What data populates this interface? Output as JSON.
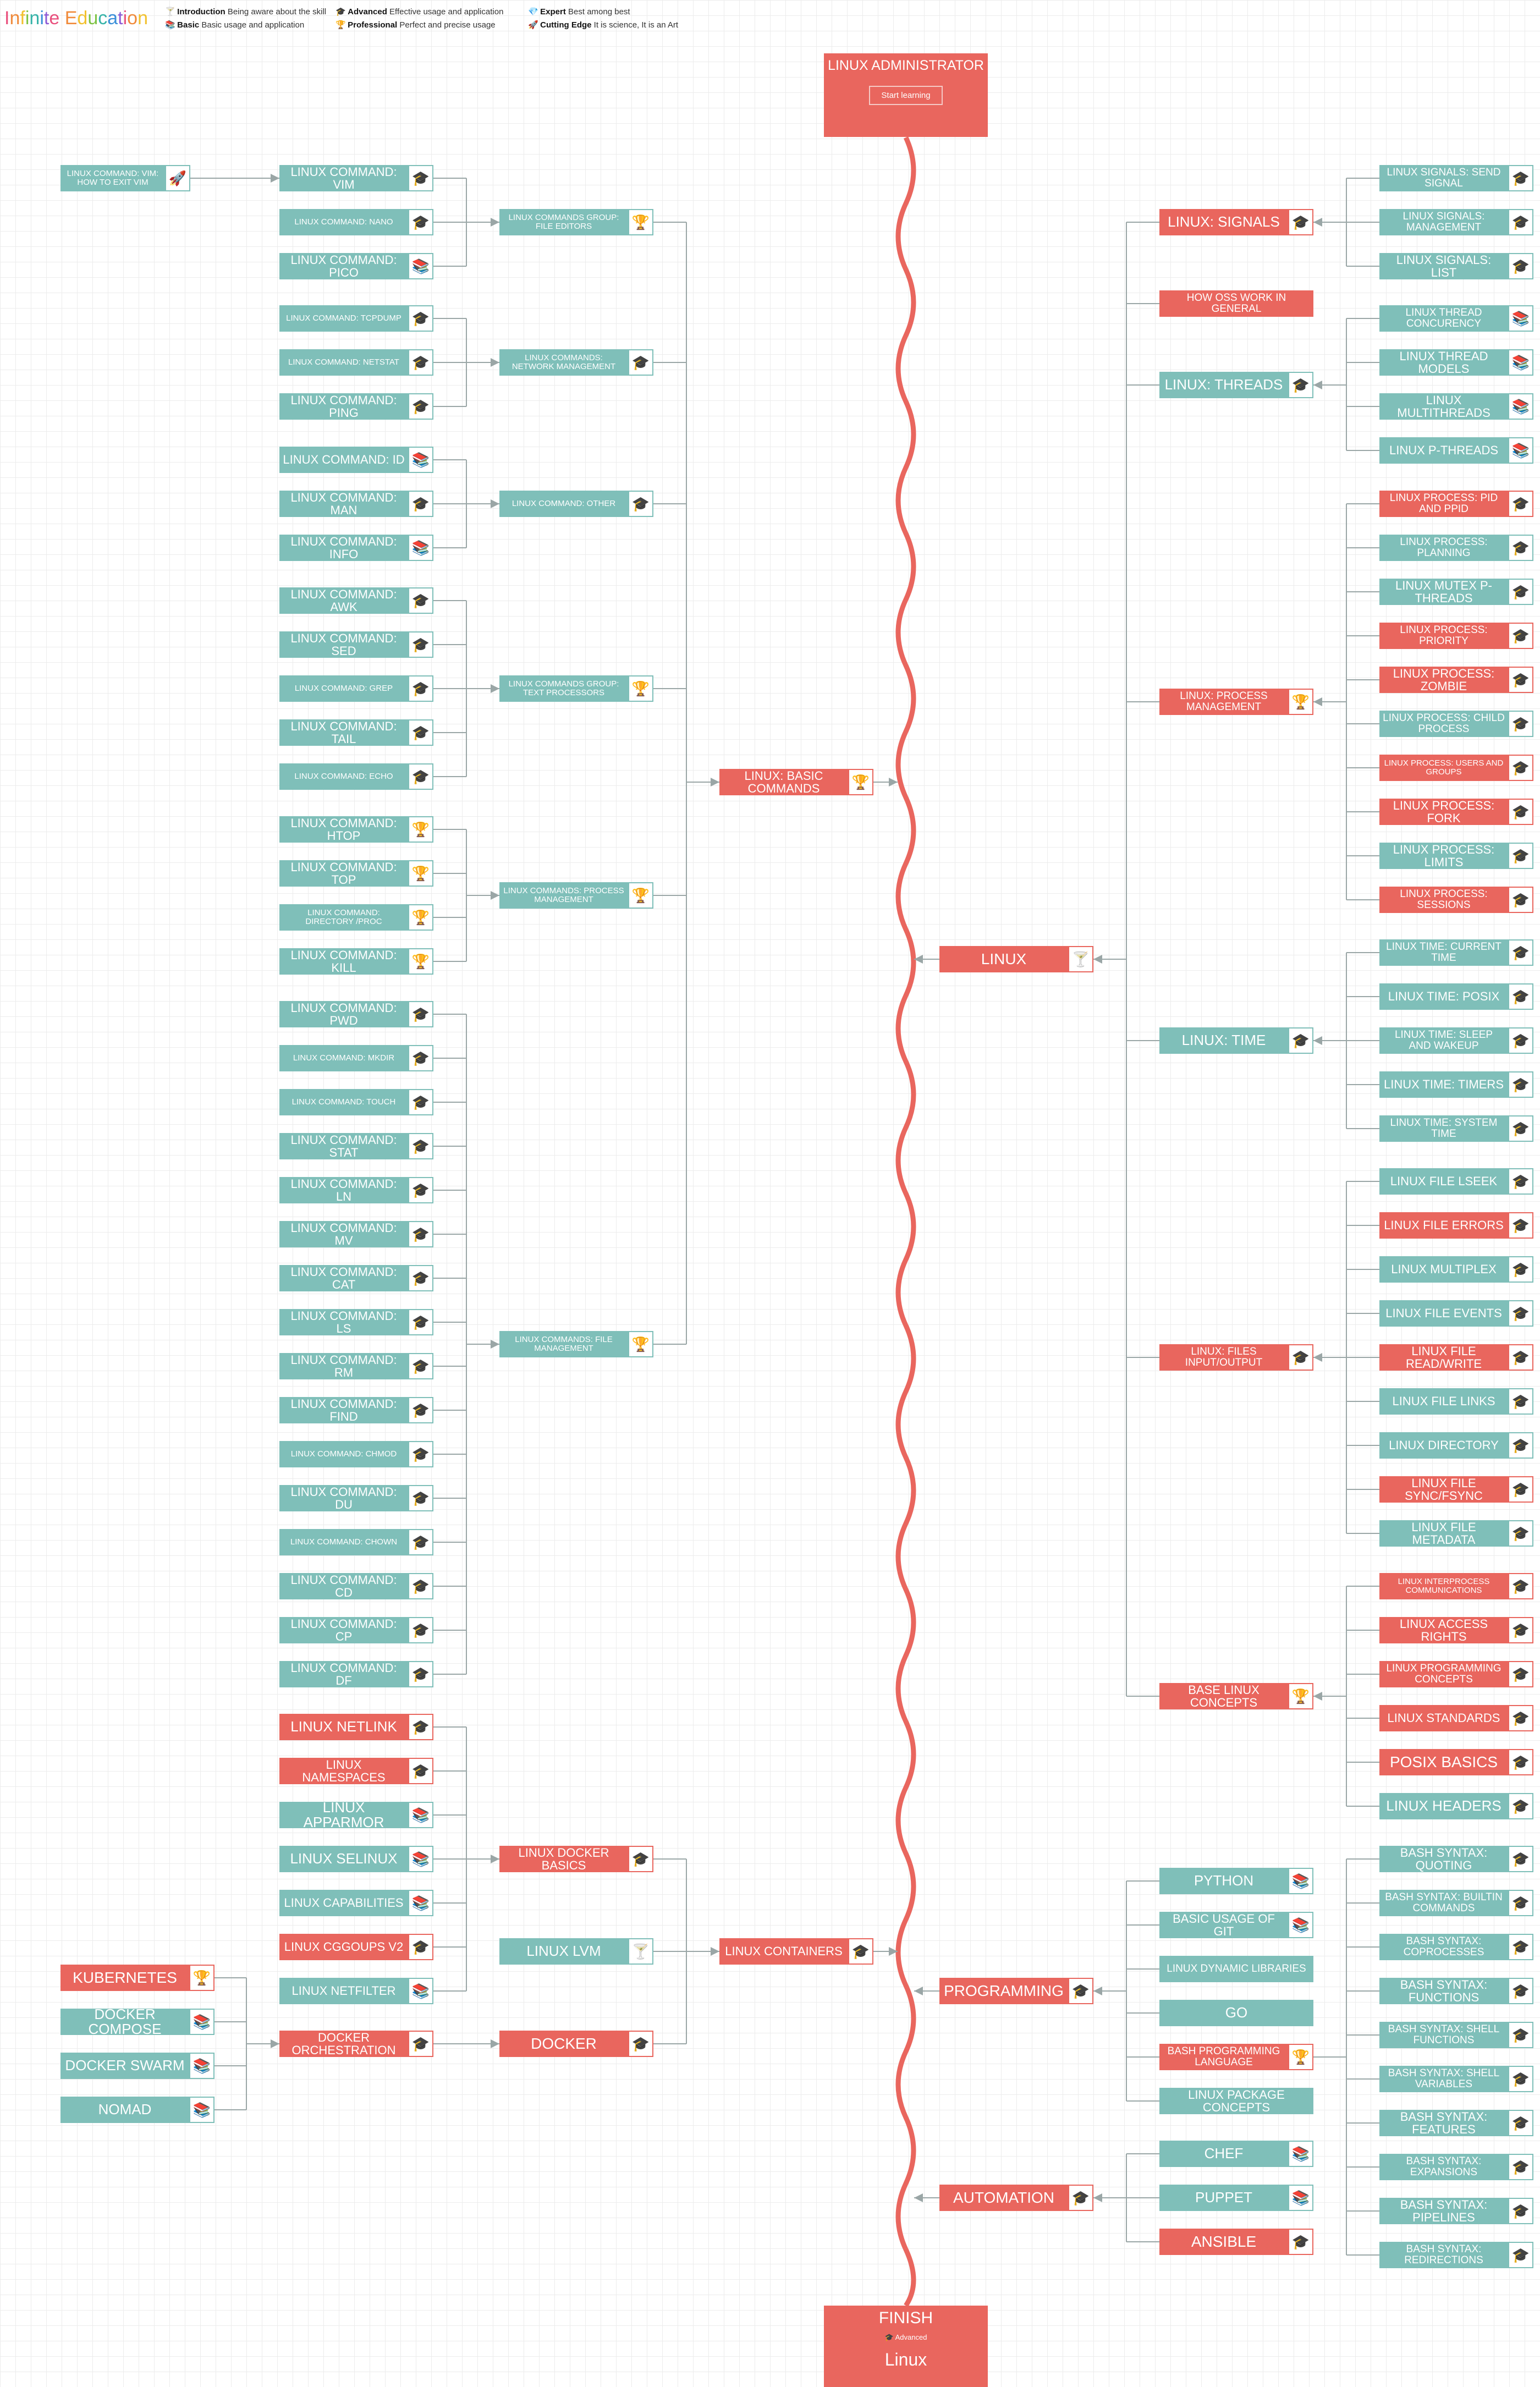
{
  "brand": {
    "title": "Infinite Education",
    "colors": [
      "#e94f7c",
      "#f08a3a",
      "#f2c12e",
      "#7cc242",
      "#36b3a8",
      "#3a8fd9",
      "#8e5bd6"
    ]
  },
  "legend": [
    {
      "icon": "cocktail-icon",
      "glyph": "🍸",
      "name": "Introduction",
      "desc": "Being aware about the skill"
    },
    {
      "icon": "books-icon",
      "glyph": "📚",
      "name": "Basic",
      "desc": "Basic usage and application"
    },
    {
      "icon": "graduation-cap-icon",
      "glyph": "🎓",
      "name": "Advanced",
      "desc": "Effective usage and application"
    },
    {
      "icon": "trophy-icon",
      "glyph": "🏆",
      "name": "Professional",
      "desc": "Perfect and precise usage"
    },
    {
      "icon": "diamond-icon",
      "glyph": "💎",
      "name": "Expert",
      "desc": "Best among best"
    },
    {
      "icon": "rocket-icon",
      "glyph": "🚀",
      "name": "Cutting Edge",
      "desc": "It is science, It is an Art"
    }
  ],
  "start": {
    "title": "LINUX ADMINISTRATOR",
    "button": "Start learning"
  },
  "finish": {
    "title": "FINISH",
    "level": "Advanced",
    "name": "Linux"
  },
  "colors": {
    "teal": "#7fbfb9",
    "red": "#e9665e",
    "spine": "#e9665e",
    "line": "#9aa6a6"
  },
  "nodes": [
    {
      "id": "vim-exit",
      "label": "LINUX COMMAND: VIM: HOW TO EXIT VIM",
      "icon": "rocket-icon",
      "color": "teal"
    },
    {
      "id": "cmd-vim",
      "label": "LINUX COMMAND: VIM",
      "icon": "graduation-cap-icon",
      "color": "teal"
    },
    {
      "id": "cmd-nano",
      "label": "LINUX COMMAND: NANO",
      "icon": "graduation-cap-icon",
      "color": "teal"
    },
    {
      "id": "cmd-pico",
      "label": "LINUX COMMAND: PICO",
      "icon": "books-icon",
      "color": "teal"
    },
    {
      "id": "grp-editors",
      "label": "LINUX COMMANDS GROUP: FILE EDITORS",
      "icon": "trophy-icon",
      "color": "teal"
    },
    {
      "id": "cmd-tcpdump",
      "label": "LINUX COMMAND: TCPDUMP",
      "icon": "graduation-cap-icon",
      "color": "teal"
    },
    {
      "id": "cmd-netstat",
      "label": "LINUX COMMAND: NETSTAT",
      "icon": "graduation-cap-icon",
      "color": "teal"
    },
    {
      "id": "cmd-ping",
      "label": "LINUX COMMAND: PING",
      "icon": "graduation-cap-icon",
      "color": "teal"
    },
    {
      "id": "grp-network",
      "label": "LINUX COMMANDS: NETWORK MANAGEMENT",
      "icon": "graduation-cap-icon",
      "color": "teal"
    },
    {
      "id": "cmd-id",
      "label": "LINUX COMMAND: ID",
      "icon": "books-icon",
      "color": "teal"
    },
    {
      "id": "cmd-man",
      "label": "LINUX COMMAND: MAN",
      "icon": "graduation-cap-icon",
      "color": "teal"
    },
    {
      "id": "cmd-info",
      "label": "LINUX COMMAND: INFO",
      "icon": "books-icon",
      "color": "teal"
    },
    {
      "id": "grp-other",
      "label": "LINUX COMMAND: OTHER",
      "icon": "graduation-cap-icon",
      "color": "teal"
    },
    {
      "id": "cmd-awk",
      "label": "LINUX COMMAND: AWK",
      "icon": "graduation-cap-icon",
      "color": "teal"
    },
    {
      "id": "cmd-sed",
      "label": "LINUX COMMAND: SED",
      "icon": "graduation-cap-icon",
      "color": "teal"
    },
    {
      "id": "cmd-grep",
      "label": "LINUX COMMAND: GREP",
      "icon": "graduation-cap-icon",
      "color": "teal"
    },
    {
      "id": "cmd-tail",
      "label": "LINUX COMMAND: TAIL",
      "icon": "graduation-cap-icon",
      "color": "teal"
    },
    {
      "id": "cmd-echo",
      "label": "LINUX COMMAND: ECHO",
      "icon": "graduation-cap-icon",
      "color": "teal"
    },
    {
      "id": "grp-text",
      "label": "LINUX COMMANDS GROUP: TEXT PROCESSORS",
      "icon": "trophy-icon",
      "color": "teal"
    },
    {
      "id": "cmd-htop",
      "label": "LINUX COMMAND: HTOP",
      "icon": "trophy-icon",
      "color": "teal"
    },
    {
      "id": "cmd-top",
      "label": "LINUX COMMAND: TOP",
      "icon": "trophy-icon",
      "color": "teal"
    },
    {
      "id": "cmd-proc",
      "label": "LINUX COMMAND: DIRECTORY /PROC",
      "icon": "trophy-icon",
      "color": "teal"
    },
    {
      "id": "cmd-kill",
      "label": "LINUX COMMAND: KILL",
      "icon": "trophy-icon",
      "color": "teal"
    },
    {
      "id": "grp-process",
      "label": "LINUX COMMANDS: PROCESS MANAGEMENT",
      "icon": "trophy-icon",
      "color": "teal"
    },
    {
      "id": "cmd-pwd",
      "label": "LINUX COMMAND: PWD",
      "icon": "graduation-cap-icon",
      "color": "teal"
    },
    {
      "id": "cmd-mkdir",
      "label": "LINUX COMMAND: MKDIR",
      "icon": "graduation-cap-icon",
      "color": "teal"
    },
    {
      "id": "cmd-touch",
      "label": "LINUX COMMAND: TOUCH",
      "icon": "graduation-cap-icon",
      "color": "teal"
    },
    {
      "id": "cmd-stat",
      "label": "LINUX COMMAND: STAT",
      "icon": "graduation-cap-icon",
      "color": "teal"
    },
    {
      "id": "cmd-ln",
      "label": "LINUX COMMAND: LN",
      "icon": "graduation-cap-icon",
      "color": "teal"
    },
    {
      "id": "cmd-mv",
      "label": "LINUX COMMAND: MV",
      "icon": "graduation-cap-icon",
      "color": "teal"
    },
    {
      "id": "cmd-cat",
      "label": "LINUX COMMAND: CAT",
      "icon": "graduation-cap-icon",
      "color": "teal"
    },
    {
      "id": "cmd-ls",
      "label": "LINUX COMMAND: LS",
      "icon": "graduation-cap-icon",
      "color": "teal"
    },
    {
      "id": "cmd-rm",
      "label": "LINUX COMMAND: RM",
      "icon": "graduation-cap-icon",
      "color": "teal"
    },
    {
      "id": "cmd-find",
      "label": "LINUX COMMAND: FIND",
      "icon": "graduation-cap-icon",
      "color": "teal"
    },
    {
      "id": "cmd-chmod",
      "label": "LINUX COMMAND: CHMOD",
      "icon": "graduation-cap-icon",
      "color": "teal"
    },
    {
      "id": "cmd-du",
      "label": "LINUX COMMAND: DU",
      "icon": "graduation-cap-icon",
      "color": "teal"
    },
    {
      "id": "cmd-chown",
      "label": "LINUX COMMAND: CHOWN",
      "icon": "graduation-cap-icon",
      "color": "teal"
    },
    {
      "id": "cmd-cd",
      "label": "LINUX COMMAND: CD",
      "icon": "graduation-cap-icon",
      "color": "teal"
    },
    {
      "id": "cmd-cp",
      "label": "LINUX COMMAND: CP",
      "icon": "graduation-cap-icon",
      "color": "teal"
    },
    {
      "id": "cmd-df",
      "label": "LINUX COMMAND: DF",
      "icon": "graduation-cap-icon",
      "color": "teal"
    },
    {
      "id": "grp-files",
      "label": "LINUX COMMANDS: FILE MANAGEMENT",
      "icon": "trophy-icon",
      "color": "teal"
    },
    {
      "id": "basic-commands",
      "label": "LINUX: BASIC COMMANDS",
      "icon": "trophy-icon",
      "color": "red"
    },
    {
      "id": "netlink",
      "label": "LINUX NETLINK",
      "icon": "graduation-cap-icon",
      "color": "red"
    },
    {
      "id": "namespaces",
      "label": "LINUX NAMESPACES",
      "icon": "graduation-cap-icon",
      "color": "red"
    },
    {
      "id": "apparmor",
      "label": "LINUX APPARMOR",
      "icon": "books-icon",
      "color": "teal"
    },
    {
      "id": "selinux",
      "label": "LINUX SELINUX",
      "icon": "books-icon",
      "color": "teal"
    },
    {
      "id": "capabilities",
      "label": "LINUX CAPABILITIES",
      "icon": "books-icon",
      "color": "teal"
    },
    {
      "id": "cgroups",
      "label": "LINUX CGGOUPS V2",
      "icon": "graduation-cap-icon",
      "color": "red"
    },
    {
      "id": "netfilter",
      "label": "LINUX NETFILTER",
      "icon": "books-icon",
      "color": "teal"
    },
    {
      "id": "docker-basics",
      "label": "LINUX DOCKER BASICS",
      "icon": "graduation-cap-icon",
      "color": "red"
    },
    {
      "id": "lvm",
      "label": "LINUX LVM",
      "icon": "cocktail-icon",
      "color": "teal"
    },
    {
      "id": "containers",
      "label": "LINUX CONTAINERS",
      "icon": "graduation-cap-icon",
      "color": "red"
    },
    {
      "id": "kubernetes",
      "label": "KUBERNETES",
      "icon": "trophy-icon",
      "color": "red"
    },
    {
      "id": "compose",
      "label": "DOCKER COMPOSE",
      "icon": "books-icon",
      "color": "teal"
    },
    {
      "id": "swarm",
      "label": "DOCKER SWARM",
      "icon": "books-icon",
      "color": "teal"
    },
    {
      "id": "nomad",
      "label": "NOMAD",
      "icon": "books-icon",
      "color": "teal"
    },
    {
      "id": "orchestration",
      "label": "DOCKER ORCHESTRATION",
      "icon": "graduation-cap-icon",
      "color": "red"
    },
    {
      "id": "docker",
      "label": "DOCKER",
      "icon": "graduation-cap-icon",
      "color": "red"
    },
    {
      "id": "sig-send",
      "label": "LINUX SIGNALS: SEND SIGNAL",
      "icon": "graduation-cap-icon",
      "color": "teal"
    },
    {
      "id": "sig-manage",
      "label": "LINUX SIGNALS: MANAGEMENT",
      "icon": "graduation-cap-icon",
      "color": "teal"
    },
    {
      "id": "sig-list",
      "label": "LINUX SIGNALS: LIST",
      "icon": "graduation-cap-icon",
      "color": "teal"
    },
    {
      "id": "signals",
      "label": "LINUX: SIGNALS",
      "icon": "graduation-cap-icon",
      "color": "red"
    },
    {
      "id": "oss",
      "label": "HOW OSS WORK IN GENERAL",
      "icon": "",
      "color": "red"
    },
    {
      "id": "thr-conc",
      "label": "LINUX THREAD CONCURENCY",
      "icon": "books-icon",
      "color": "teal"
    },
    {
      "id": "thr-models",
      "label": "LINUX THREAD MODELS",
      "icon": "books-icon",
      "color": "teal"
    },
    {
      "id": "thr-multi",
      "label": "LINUX MULTITHREADS",
      "icon": "books-icon",
      "color": "teal"
    },
    {
      "id": "thr-p",
      "label": "LINUX P-THREADS",
      "icon": "books-icon",
      "color": "teal"
    },
    {
      "id": "threads",
      "label": "LINUX: THREADS",
      "icon": "graduation-cap-icon",
      "color": "teal"
    },
    {
      "id": "pr-pid",
      "label": "LINUX PROCESS: PID AND PPID",
      "icon": "graduation-cap-icon",
      "color": "red"
    },
    {
      "id": "pr-plan",
      "label": "LINUX PROCESS: PLANNING",
      "icon": "graduation-cap-icon",
      "color": "teal"
    },
    {
      "id": "pr-mutex",
      "label": "LINUX MUTEX P-THREADS",
      "icon": "graduation-cap-icon",
      "color": "teal"
    },
    {
      "id": "pr-prio",
      "label": "LINUX PROCESS: PRIORITY",
      "icon": "graduation-cap-icon",
      "color": "red"
    },
    {
      "id": "pr-zombie",
      "label": "LINUX PROCESS: ZOMBIE",
      "icon": "graduation-cap-icon",
      "color": "red"
    },
    {
      "id": "pr-child",
      "label": "LINUX PROCESS: CHILD PROCESS",
      "icon": "graduation-cap-icon",
      "color": "teal"
    },
    {
      "id": "pr-users",
      "label": "LINUX PROCESS: USERS AND GROUPS",
      "icon": "graduation-cap-icon",
      "color": "red"
    },
    {
      "id": "pr-fork",
      "label": "LINUX PROCESS: FORK",
      "icon": "graduation-cap-icon",
      "color": "red"
    },
    {
      "id": "pr-limits",
      "label": "LINUX PROCESS: LIMITS",
      "icon": "graduation-cap-icon",
      "color": "teal"
    },
    {
      "id": "pr-sess",
      "label": "LINUX PROCESS: SESSIONS",
      "icon": "graduation-cap-icon",
      "color": "red"
    },
    {
      "id": "process",
      "label": "LINUX: PROCESS MANAGEMENT",
      "icon": "trophy-icon",
      "color": "red"
    },
    {
      "id": "linux",
      "label": "LINUX",
      "icon": "cocktail-icon",
      "color": "red"
    },
    {
      "id": "t-cur",
      "label": "LINUX TIME: CURRENT TIME",
      "icon": "graduation-cap-icon",
      "color": "teal"
    },
    {
      "id": "t-posix",
      "label": "LINUX TIME: POSIX",
      "icon": "graduation-cap-icon",
      "color": "teal"
    },
    {
      "id": "t-sleep",
      "label": "LINUX TIME: SLEEP AND WAKEUP",
      "icon": "graduation-cap-icon",
      "color": "teal"
    },
    {
      "id": "t-timers",
      "label": "LINUX TIME: TIMERS",
      "icon": "graduation-cap-icon",
      "color": "teal"
    },
    {
      "id": "t-sys",
      "label": "LINUX TIME: SYSTEM TIME",
      "icon": "graduation-cap-icon",
      "color": "teal"
    },
    {
      "id": "time",
      "label": "LINUX: TIME",
      "icon": "graduation-cap-icon",
      "color": "teal"
    },
    {
      "id": "f-lseek",
      "label": "LINUX FILE LSEEK",
      "icon": "graduation-cap-icon",
      "color": "teal"
    },
    {
      "id": "f-errors",
      "label": "LINUX FILE ERRORS",
      "icon": "graduation-cap-icon",
      "color": "red"
    },
    {
      "id": "f-multi",
      "label": "LINUX MULTIPLEX",
      "icon": "graduation-cap-icon",
      "color": "teal"
    },
    {
      "id": "f-events",
      "label": "LINUX FILE EVENTS",
      "icon": "graduation-cap-icon",
      "color": "teal"
    },
    {
      "id": "f-rw",
      "label": "LINUX FILE READ/WRITE",
      "icon": "graduation-cap-icon",
      "color": "red"
    },
    {
      "id": "f-links",
      "label": "LINUX FILE LINKS",
      "icon": "graduation-cap-icon",
      "color": "teal"
    },
    {
      "id": "f-dir",
      "label": "LINUX DIRECTORY",
      "icon": "graduation-cap-icon",
      "color": "teal"
    },
    {
      "id": "f-sync",
      "label": "LINUX FILE SYNC/FSYNC",
      "icon": "graduation-cap-icon",
      "color": "red"
    },
    {
      "id": "f-meta",
      "label": "LINUX FILE METADATA",
      "icon": "graduation-cap-icon",
      "color": "teal"
    },
    {
      "id": "files-io",
      "label": "LINUX: FILES INPUT/OUTPUT",
      "icon": "graduation-cap-icon",
      "color": "red"
    },
    {
      "id": "b-ipc",
      "label": "LINUX INTERPROCESS COMMUNICATIONS",
      "icon": "graduation-cap-icon",
      "color": "red"
    },
    {
      "id": "b-rights",
      "label": "LINUX ACCESS RIGHTS",
      "icon": "graduation-cap-icon",
      "color": "red"
    },
    {
      "id": "b-prog",
      "label": "LINUX PROGRAMMING CONCEPTS",
      "icon": "graduation-cap-icon",
      "color": "red"
    },
    {
      "id": "b-std",
      "label": "LINUX STANDARDS",
      "icon": "graduation-cap-icon",
      "color": "red"
    },
    {
      "id": "b-posix",
      "label": "POSIX BASICS",
      "icon": "graduation-cap-icon",
      "color": "red"
    },
    {
      "id": "b-headers",
      "label": "LINUX HEADERS",
      "icon": "graduation-cap-icon",
      "color": "teal"
    },
    {
      "id": "base",
      "label": "BASE LINUX CONCEPTS",
      "icon": "trophy-icon",
      "color": "red"
    },
    {
      "id": "python",
      "label": "PYTHON",
      "icon": "books-icon",
      "color": "teal"
    },
    {
      "id": "git",
      "label": "BASIC USAGE OF GIT",
      "icon": "books-icon",
      "color": "teal"
    },
    {
      "id": "dynlib",
      "label": "LINUX DYNAMIC LIBRARIES",
      "icon": "",
      "color": "teal"
    },
    {
      "id": "go",
      "label": "GO",
      "icon": "",
      "color": "teal"
    },
    {
      "id": "bash",
      "label": "BASH PROGRAMMING LANGUAGE",
      "icon": "trophy-icon",
      "color": "red"
    },
    {
      "id": "pkg",
      "label": "LINUX PACKAGE CONCEPTS",
      "icon": "",
      "color": "teal"
    },
    {
      "id": "programming",
      "label": "PROGRAMMING",
      "icon": "graduation-cap-icon",
      "color": "red"
    },
    {
      "id": "bs-quote",
      "label": "BASH SYNTAX: QUOTING",
      "icon": "graduation-cap-icon",
      "color": "teal"
    },
    {
      "id": "bs-builtin",
      "label": "BASH SYNTAX: BUILTIN COMMANDS",
      "icon": "graduation-cap-icon",
      "color": "teal"
    },
    {
      "id": "bs-coproc",
      "label": "BASH SYNTAX: COPROCESSES",
      "icon": "graduation-cap-icon",
      "color": "teal"
    },
    {
      "id": "bs-func",
      "label": "BASH SYNTAX: FUNCTIONS",
      "icon": "graduation-cap-icon",
      "color": "teal"
    },
    {
      "id": "bs-shfunc",
      "label": "BASH SYNTAX: SHELL FUNCTIONS",
      "icon": "graduation-cap-icon",
      "color": "teal"
    },
    {
      "id": "bs-shvar",
      "label": "BASH SYNTAX: SHELL VARIABLES",
      "icon": "graduation-cap-icon",
      "color": "teal"
    },
    {
      "id": "bs-feat",
      "label": "BASH SYNTAX: FEATURES",
      "icon": "graduation-cap-icon",
      "color": "teal"
    },
    {
      "id": "bs-exp",
      "label": "BASH SYNTAX: EXPANSIONS",
      "icon": "graduation-cap-icon",
      "color": "teal"
    },
    {
      "id": "bs-pipe",
      "label": "BASH SYNTAX: PIPELINES",
      "icon": "graduation-cap-icon",
      "color": "teal"
    },
    {
      "id": "bs-redir",
      "label": "BASH SYNTAX: REDIRECTIONS",
      "icon": "graduation-cap-icon",
      "color": "teal"
    },
    {
      "id": "chef",
      "label": "CHEF",
      "icon": "books-icon",
      "color": "teal"
    },
    {
      "id": "puppet",
      "label": "PUPPET",
      "icon": "books-icon",
      "color": "teal"
    },
    {
      "id": "ansible",
      "label": "ANSIBLE",
      "icon": "graduation-cap-icon",
      "color": "red"
    },
    {
      "id": "automation",
      "label": "AUTOMATION",
      "icon": "graduation-cap-icon",
      "color": "red"
    }
  ]
}
